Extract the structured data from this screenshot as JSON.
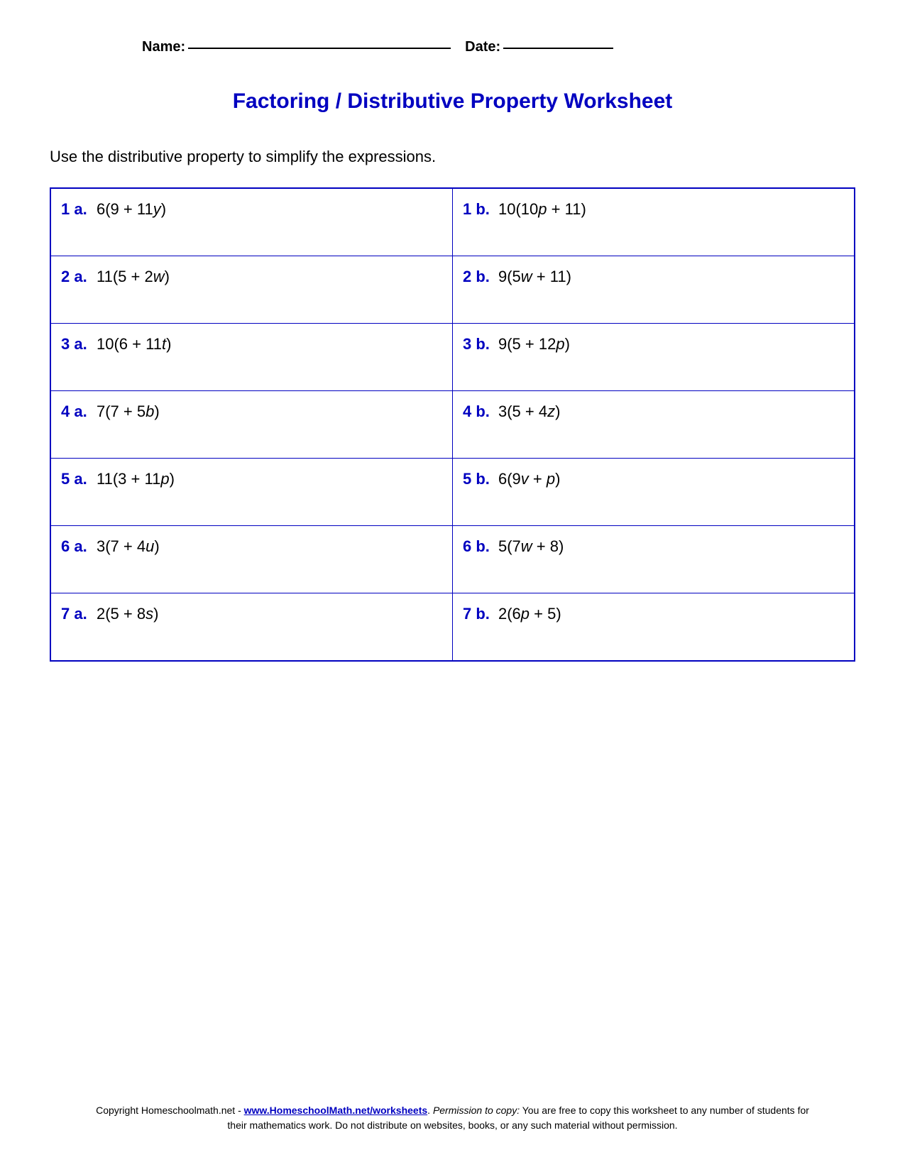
{
  "header": {
    "name_label": "Name:",
    "date_label": "Date:"
  },
  "title": "Factoring / Distributive Property Worksheet",
  "instructions": "Use the distributive property to simplify the expressions.",
  "problems": [
    {
      "label_a": "1 a.",
      "expr_a_pre": "6(9 + 11",
      "expr_a_var": "y",
      "expr_a_post": ")",
      "label_b": "1 b.",
      "expr_b_pre": "10(10",
      "expr_b_var": "p",
      "expr_b_post": " + 11)"
    },
    {
      "label_a": "2 a.",
      "expr_a_pre": "11(5 + 2",
      "expr_a_var": "w",
      "expr_a_post": ")",
      "label_b": "2 b.",
      "expr_b_pre": "9(5",
      "expr_b_var": "w",
      "expr_b_post": " + 11)"
    },
    {
      "label_a": "3 a.",
      "expr_a_pre": "10(6 + 11",
      "expr_a_var": "t",
      "expr_a_post": ")",
      "label_b": "3 b.",
      "expr_b_pre": "9(5 + 12",
      "expr_b_var": "p",
      "expr_b_post": ")"
    },
    {
      "label_a": "4 a.",
      "expr_a_pre": "7(7 + 5",
      "expr_a_var": "b",
      "expr_a_post": ")",
      "label_b": "4 b.",
      "expr_b_pre": "3(5 + 4",
      "expr_b_var": "z",
      "expr_b_post": ")"
    },
    {
      "label_a": "5 a.",
      "expr_a_pre": "11(3 + 11",
      "expr_a_var": "p",
      "expr_a_post": ")",
      "label_b": "5 b.",
      "expr_b_pre": "6(9",
      "expr_b_var": "v",
      "expr_b_post": " + ",
      "expr_b_var2": "p",
      "expr_b_post2": ")"
    },
    {
      "label_a": "6 a.",
      "expr_a_pre": "3(7 + 4",
      "expr_a_var": "u",
      "expr_a_post": ")",
      "label_b": "6 b.",
      "expr_b_pre": "5(7",
      "expr_b_var": "w",
      "expr_b_post": " + 8)"
    },
    {
      "label_a": "7 a.",
      "expr_a_pre": "2(5 + 8",
      "expr_a_var": "s",
      "expr_a_post": ")",
      "label_b": "7 b.",
      "expr_b_pre": "2(6",
      "expr_b_var": "p",
      "expr_b_post": " + 5)"
    }
  ],
  "footer": {
    "copyright_pre": "Copyright Homeschoolmath.net - ",
    "link_text": "www.HomeschoolMath.net/worksheets",
    "copyright_post": ".  ",
    "permission_label": "Permission to copy:",
    "permission_text": " You are free to copy this worksheet to any number of students for their mathematics work. Do not distribute on websites, books, or any such material without permission."
  },
  "styling": {
    "title_color": "#0000c0",
    "border_color": "#0000c0",
    "label_color": "#0000c0",
    "text_color": "#000000",
    "background_color": "#ffffff",
    "title_fontsize": 30,
    "body_fontsize": 22,
    "header_fontsize": 20,
    "footer_fontsize": 14
  }
}
